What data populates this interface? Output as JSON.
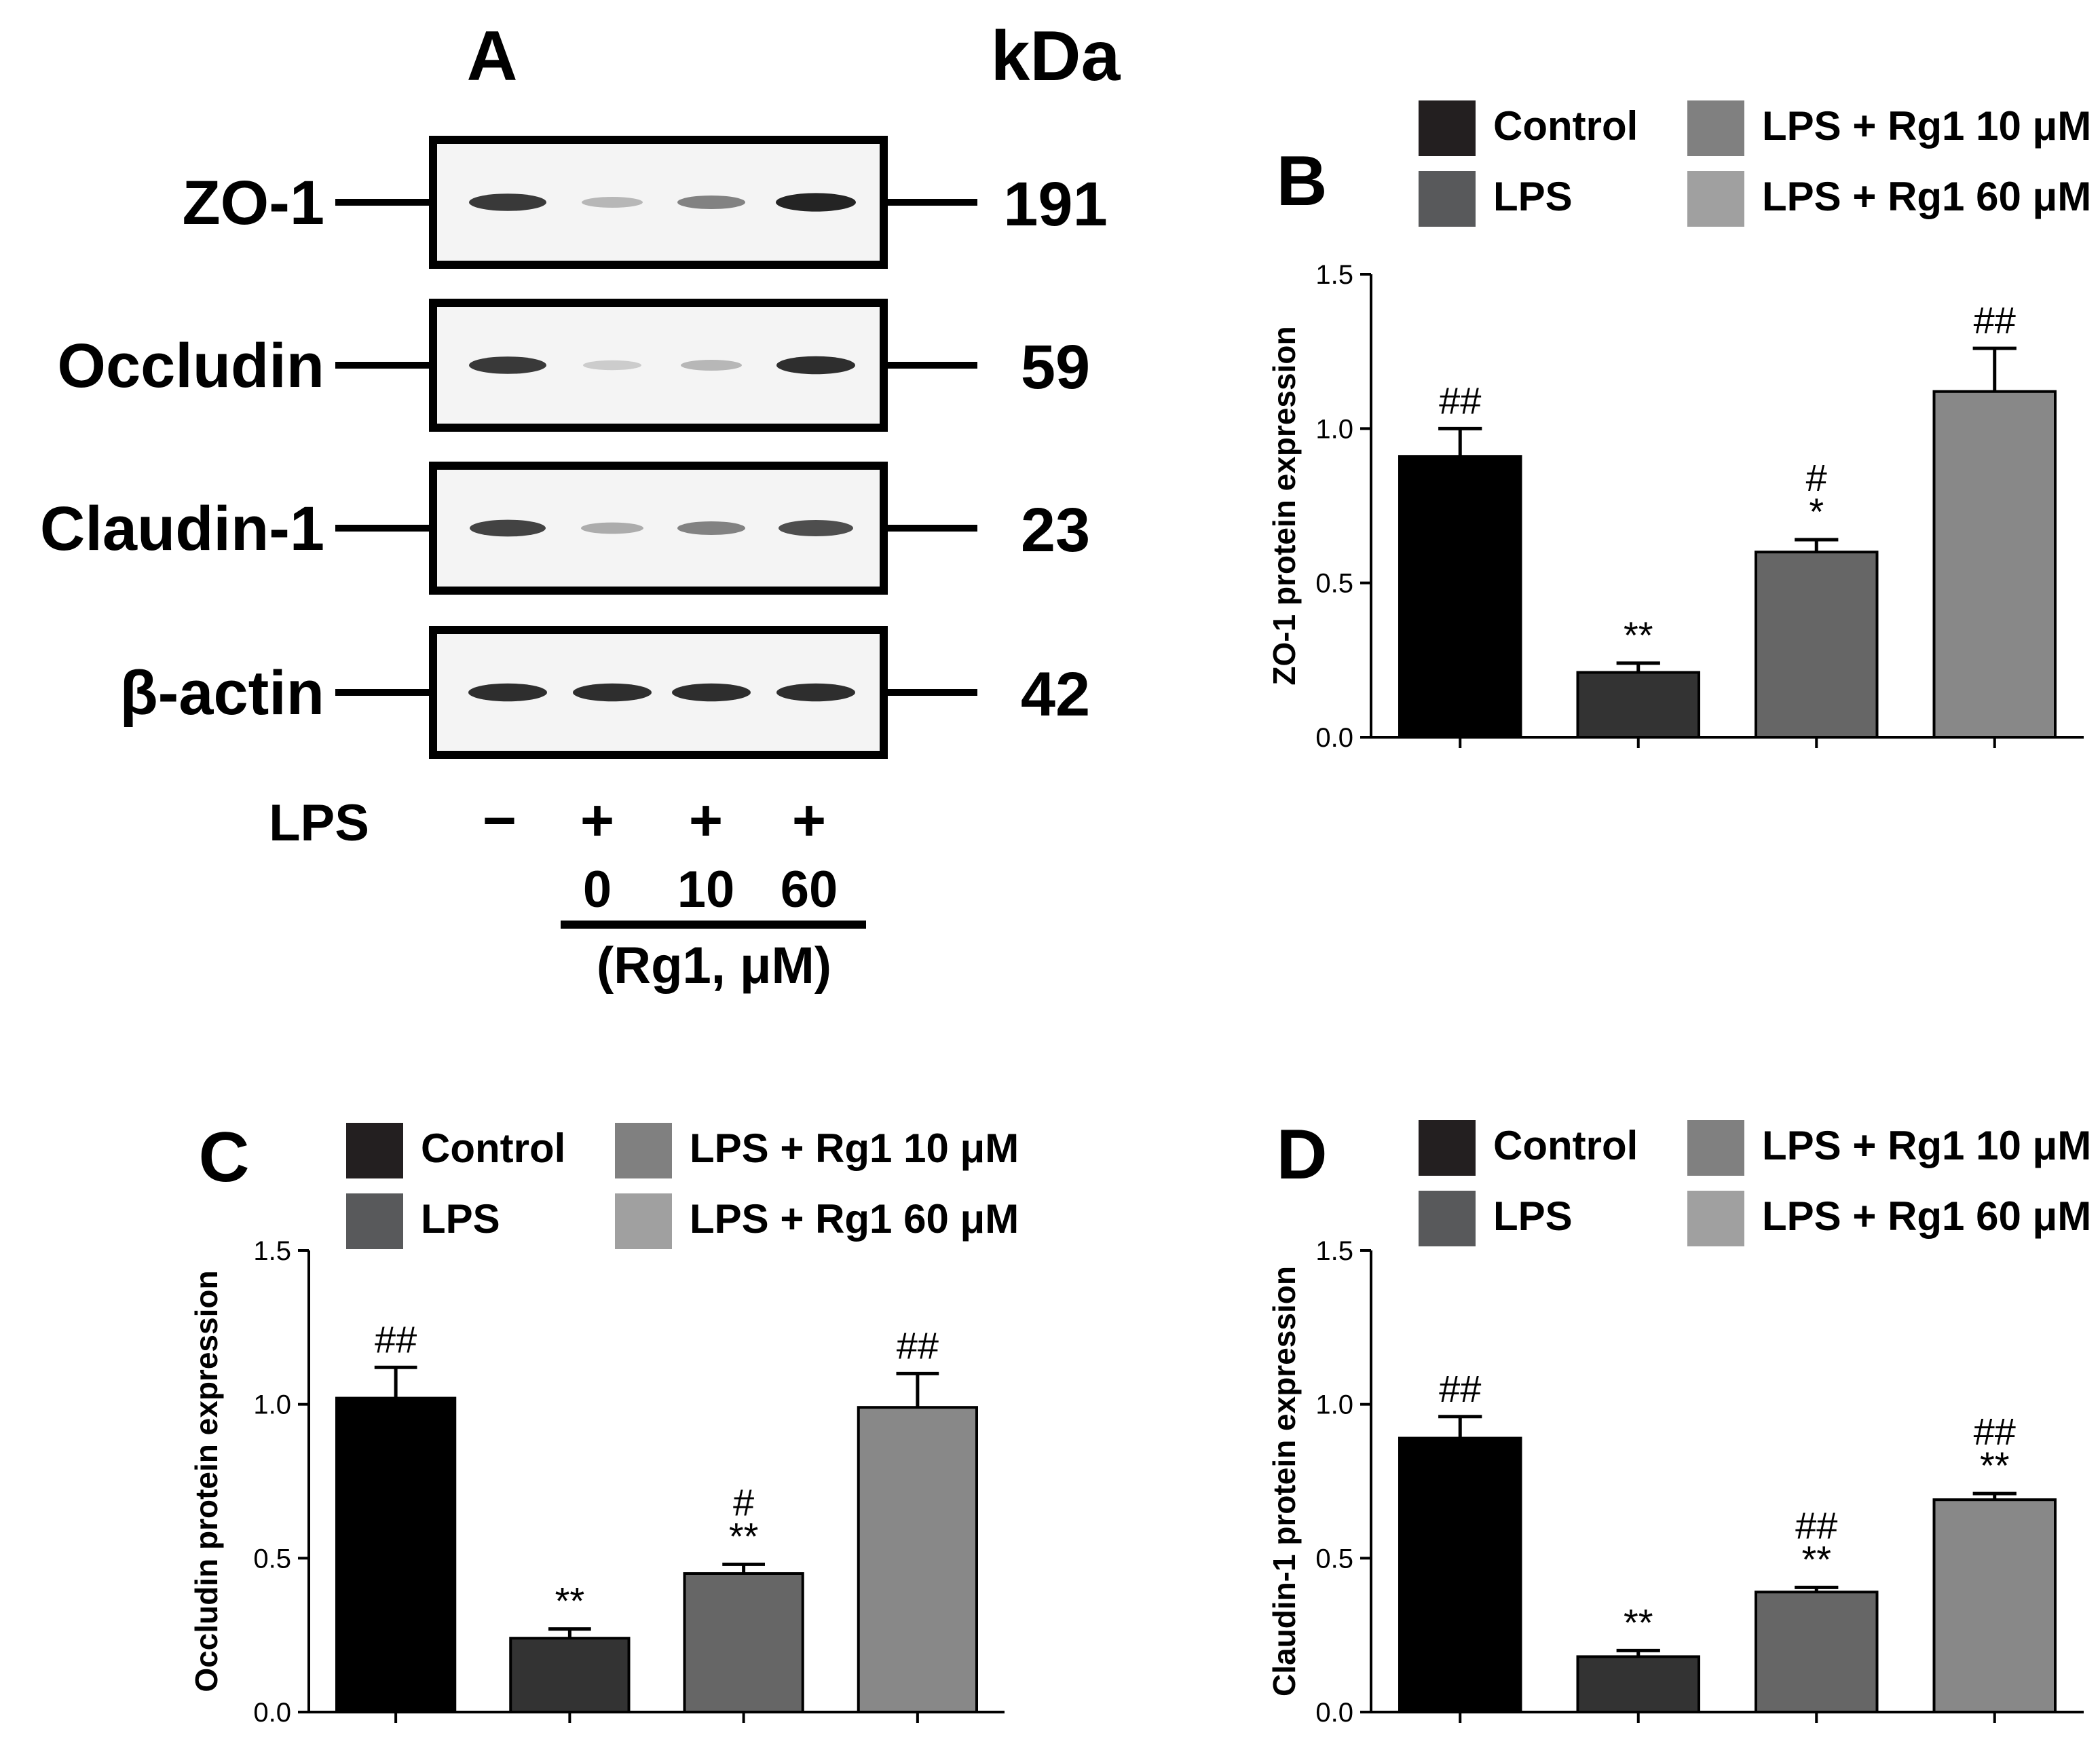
{
  "panel_a": {
    "label": "A",
    "kda_header": "kDa",
    "blots": [
      {
        "protein": "ZO-1",
        "kda": "191",
        "bands": [
          0.85,
          0.25,
          0.5,
          0.95
        ]
      },
      {
        "protein": "Occludin",
        "kda": "59",
        "bands": [
          0.85,
          0.15,
          0.25,
          0.9
        ]
      },
      {
        "protein": "Claudin-1",
        "kda": "23",
        "bands": [
          0.8,
          0.3,
          0.5,
          0.75
        ]
      },
      {
        "protein": "β-actin",
        "kda": "42",
        "bands": [
          0.9,
          0.9,
          0.9,
          0.9
        ]
      }
    ],
    "lps_label": "LPS",
    "lps_signs": [
      "−",
      "+",
      "+",
      "+"
    ],
    "doses": [
      "0",
      "10",
      "60"
    ],
    "dose_label": "(Rg1, μM)"
  },
  "legend": {
    "items": [
      {
        "name": "Control",
        "color": "#231f20"
      },
      {
        "name": "LPS",
        "color": "#58595b"
      },
      {
        "name": "LPS + Rg1 10 μM",
        "color": "#808080"
      },
      {
        "name": "LPS + Rg1 60 μM",
        "color": "#a0a0a0"
      }
    ]
  },
  "chart_data": [
    {
      "panel": "B",
      "type": "bar",
      "ylabel": "ZO-1 protein expression",
      "ylim": [
        0,
        1.5
      ],
      "yticks": [
        "0.0",
        "0.5",
        "1.0",
        "1.5"
      ],
      "categories": [
        "Control",
        "LPS",
        "LPS + Rg1 10 μM",
        "LPS + Rg1 60 μM"
      ],
      "values": [
        0.91,
        0.21,
        0.6,
        1.12
      ],
      "errors": [
        0.09,
        0.03,
        0.04,
        0.14
      ],
      "annotations": [
        [
          "##"
        ],
        [
          "**"
        ],
        [
          "#",
          "*"
        ],
        [
          "##"
        ]
      ],
      "bar_colors": [
        "#000000",
        "#333333",
        "#666666",
        "#888888"
      ]
    },
    {
      "panel": "C",
      "type": "bar",
      "ylabel": "Occludin protein expression",
      "ylim": [
        0,
        1.5
      ],
      "yticks": [
        "0.0",
        "0.5",
        "1.0",
        "1.5"
      ],
      "categories": [
        "Control",
        "LPS",
        "LPS + Rg1 10 μM",
        "LPS + Rg1 60 μM"
      ],
      "values": [
        1.02,
        0.24,
        0.45,
        0.99
      ],
      "errors": [
        0.1,
        0.03,
        0.03,
        0.11
      ],
      "annotations": [
        [
          "##"
        ],
        [
          "**"
        ],
        [
          "#",
          "**"
        ],
        [
          "##"
        ]
      ],
      "bar_colors": [
        "#000000",
        "#333333",
        "#666666",
        "#888888"
      ]
    },
    {
      "panel": "D",
      "type": "bar",
      "ylabel": "Claudin-1 protein expression",
      "ylim": [
        0,
        1.5
      ],
      "yticks": [
        "0.0",
        "0.5",
        "1.0",
        "1.5"
      ],
      "categories": [
        "Control",
        "LPS",
        "LPS + Rg1 10 μM",
        "LPS + Rg1 60 μM"
      ],
      "values": [
        0.89,
        0.18,
        0.39,
        0.69
      ],
      "errors": [
        0.07,
        0.02,
        0.015,
        0.02
      ],
      "annotations": [
        [
          "##"
        ],
        [
          "**"
        ],
        [
          "##",
          "**"
        ],
        [
          "##",
          "**"
        ]
      ],
      "bar_colors": [
        "#000000",
        "#333333",
        "#666666",
        "#888888"
      ]
    }
  ]
}
